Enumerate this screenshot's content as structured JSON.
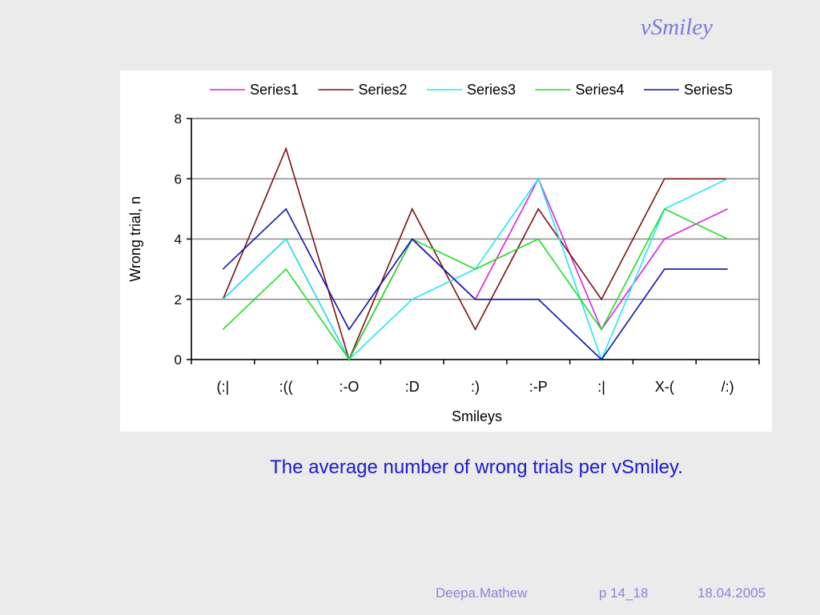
{
  "slide": {
    "title": "vSmiley",
    "caption": "The average number of wrong trials per vSmiley.",
    "footer": {
      "author": "Deepa.Mathew",
      "page": "p 14_18",
      "date": "18.04.2005"
    }
  },
  "chart_data": {
    "type": "line",
    "title": "",
    "xlabel": "Smileys",
    "ylabel": "Wrong trial, n",
    "ylim": [
      0,
      8
    ],
    "yticks": [
      0,
      2,
      4,
      6,
      8
    ],
    "grid": true,
    "legend_position": "top",
    "categories": [
      "(:|",
      ":((",
      ":-O",
      ":D",
      ":)",
      ":-P",
      ":|",
      "X-(",
      "/:)"
    ],
    "series": [
      {
        "name": "Series1",
        "color": "#e020e0",
        "values": [
          2,
          4,
          0,
          4,
          2,
          6,
          1,
          4,
          5
        ]
      },
      {
        "name": "Series2",
        "color": "#7a1010",
        "values": [
          2,
          7,
          0,
          5,
          1,
          5,
          2,
          6,
          6
        ]
      },
      {
        "name": "Series3",
        "color": "#20e8ee",
        "values": [
          2,
          4,
          0,
          2,
          3,
          6,
          0,
          5,
          6
        ]
      },
      {
        "name": "Series4",
        "color": "#20dd20",
        "values": [
          1,
          3,
          0,
          4,
          3,
          4,
          1,
          5,
          4
        ]
      },
      {
        "name": "Series5",
        "color": "#1010b0",
        "values": [
          3,
          5,
          1,
          4,
          2,
          2,
          0,
          3,
          3
        ]
      }
    ]
  }
}
